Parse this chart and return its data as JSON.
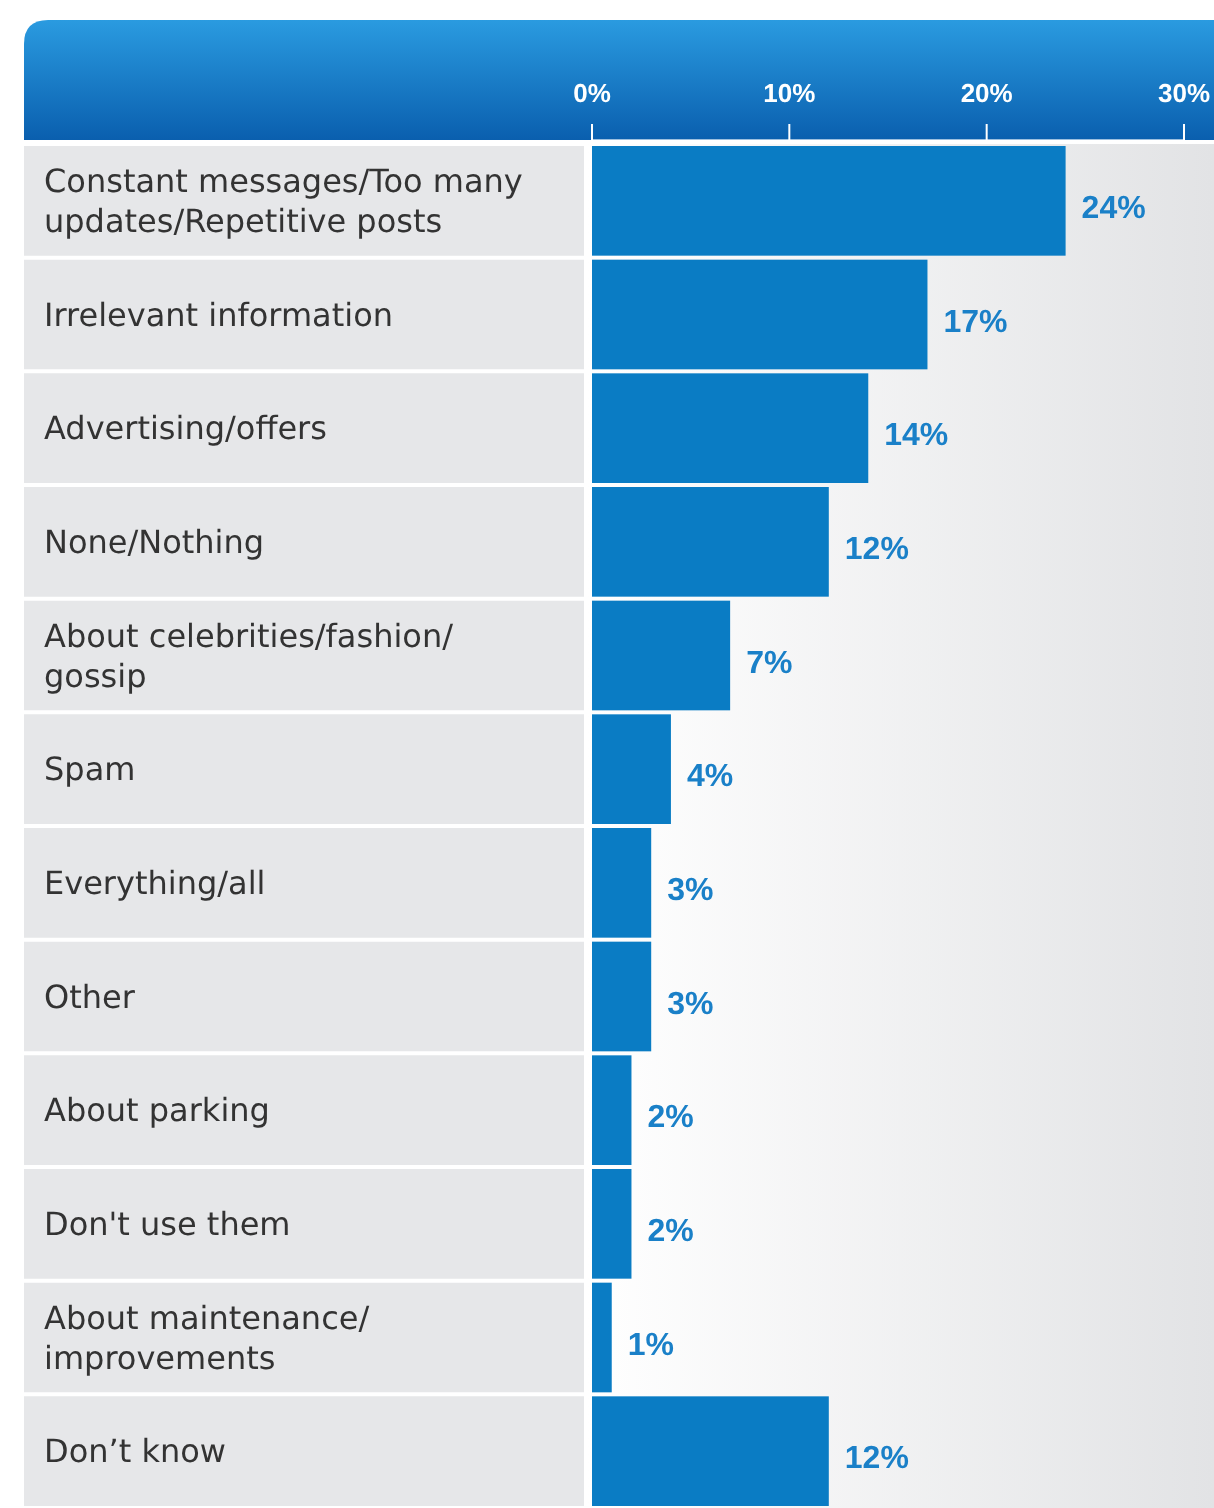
{
  "chart_data": {
    "type": "bar",
    "orientation": "horizontal",
    "categories": [
      "Constant messages/Too many updates/Repetitive posts",
      "Irrelevant information",
      "Advertising/offers",
      "None/Nothing",
      "About celebrities/fashion/gossip",
      "Spam",
      "Everything/all",
      "Other",
      "About parking",
      "Don't use them",
      "About maintenance/improvements",
      "Don’t know"
    ],
    "values": [
      24,
      17,
      14,
      12,
      7,
      4,
      3,
      3,
      2,
      2,
      1,
      12
    ],
    "color": "#0a7cc4",
    "xlim": [
      0,
      30
    ],
    "xticks": [
      {
        "value": 0,
        "label": "0%"
      },
      {
        "value": 10,
        "label": "10%"
      },
      {
        "value": 20,
        "label": "20%"
      },
      {
        "value": 30,
        "label": "30%"
      }
    ],
    "value_labels": [
      "24%",
      "17%",
      "14%",
      "12%",
      "7%",
      "4%",
      "3%",
      "3%",
      "2%",
      "2%",
      "1%",
      "12%"
    ],
    "grid": false
  }
}
